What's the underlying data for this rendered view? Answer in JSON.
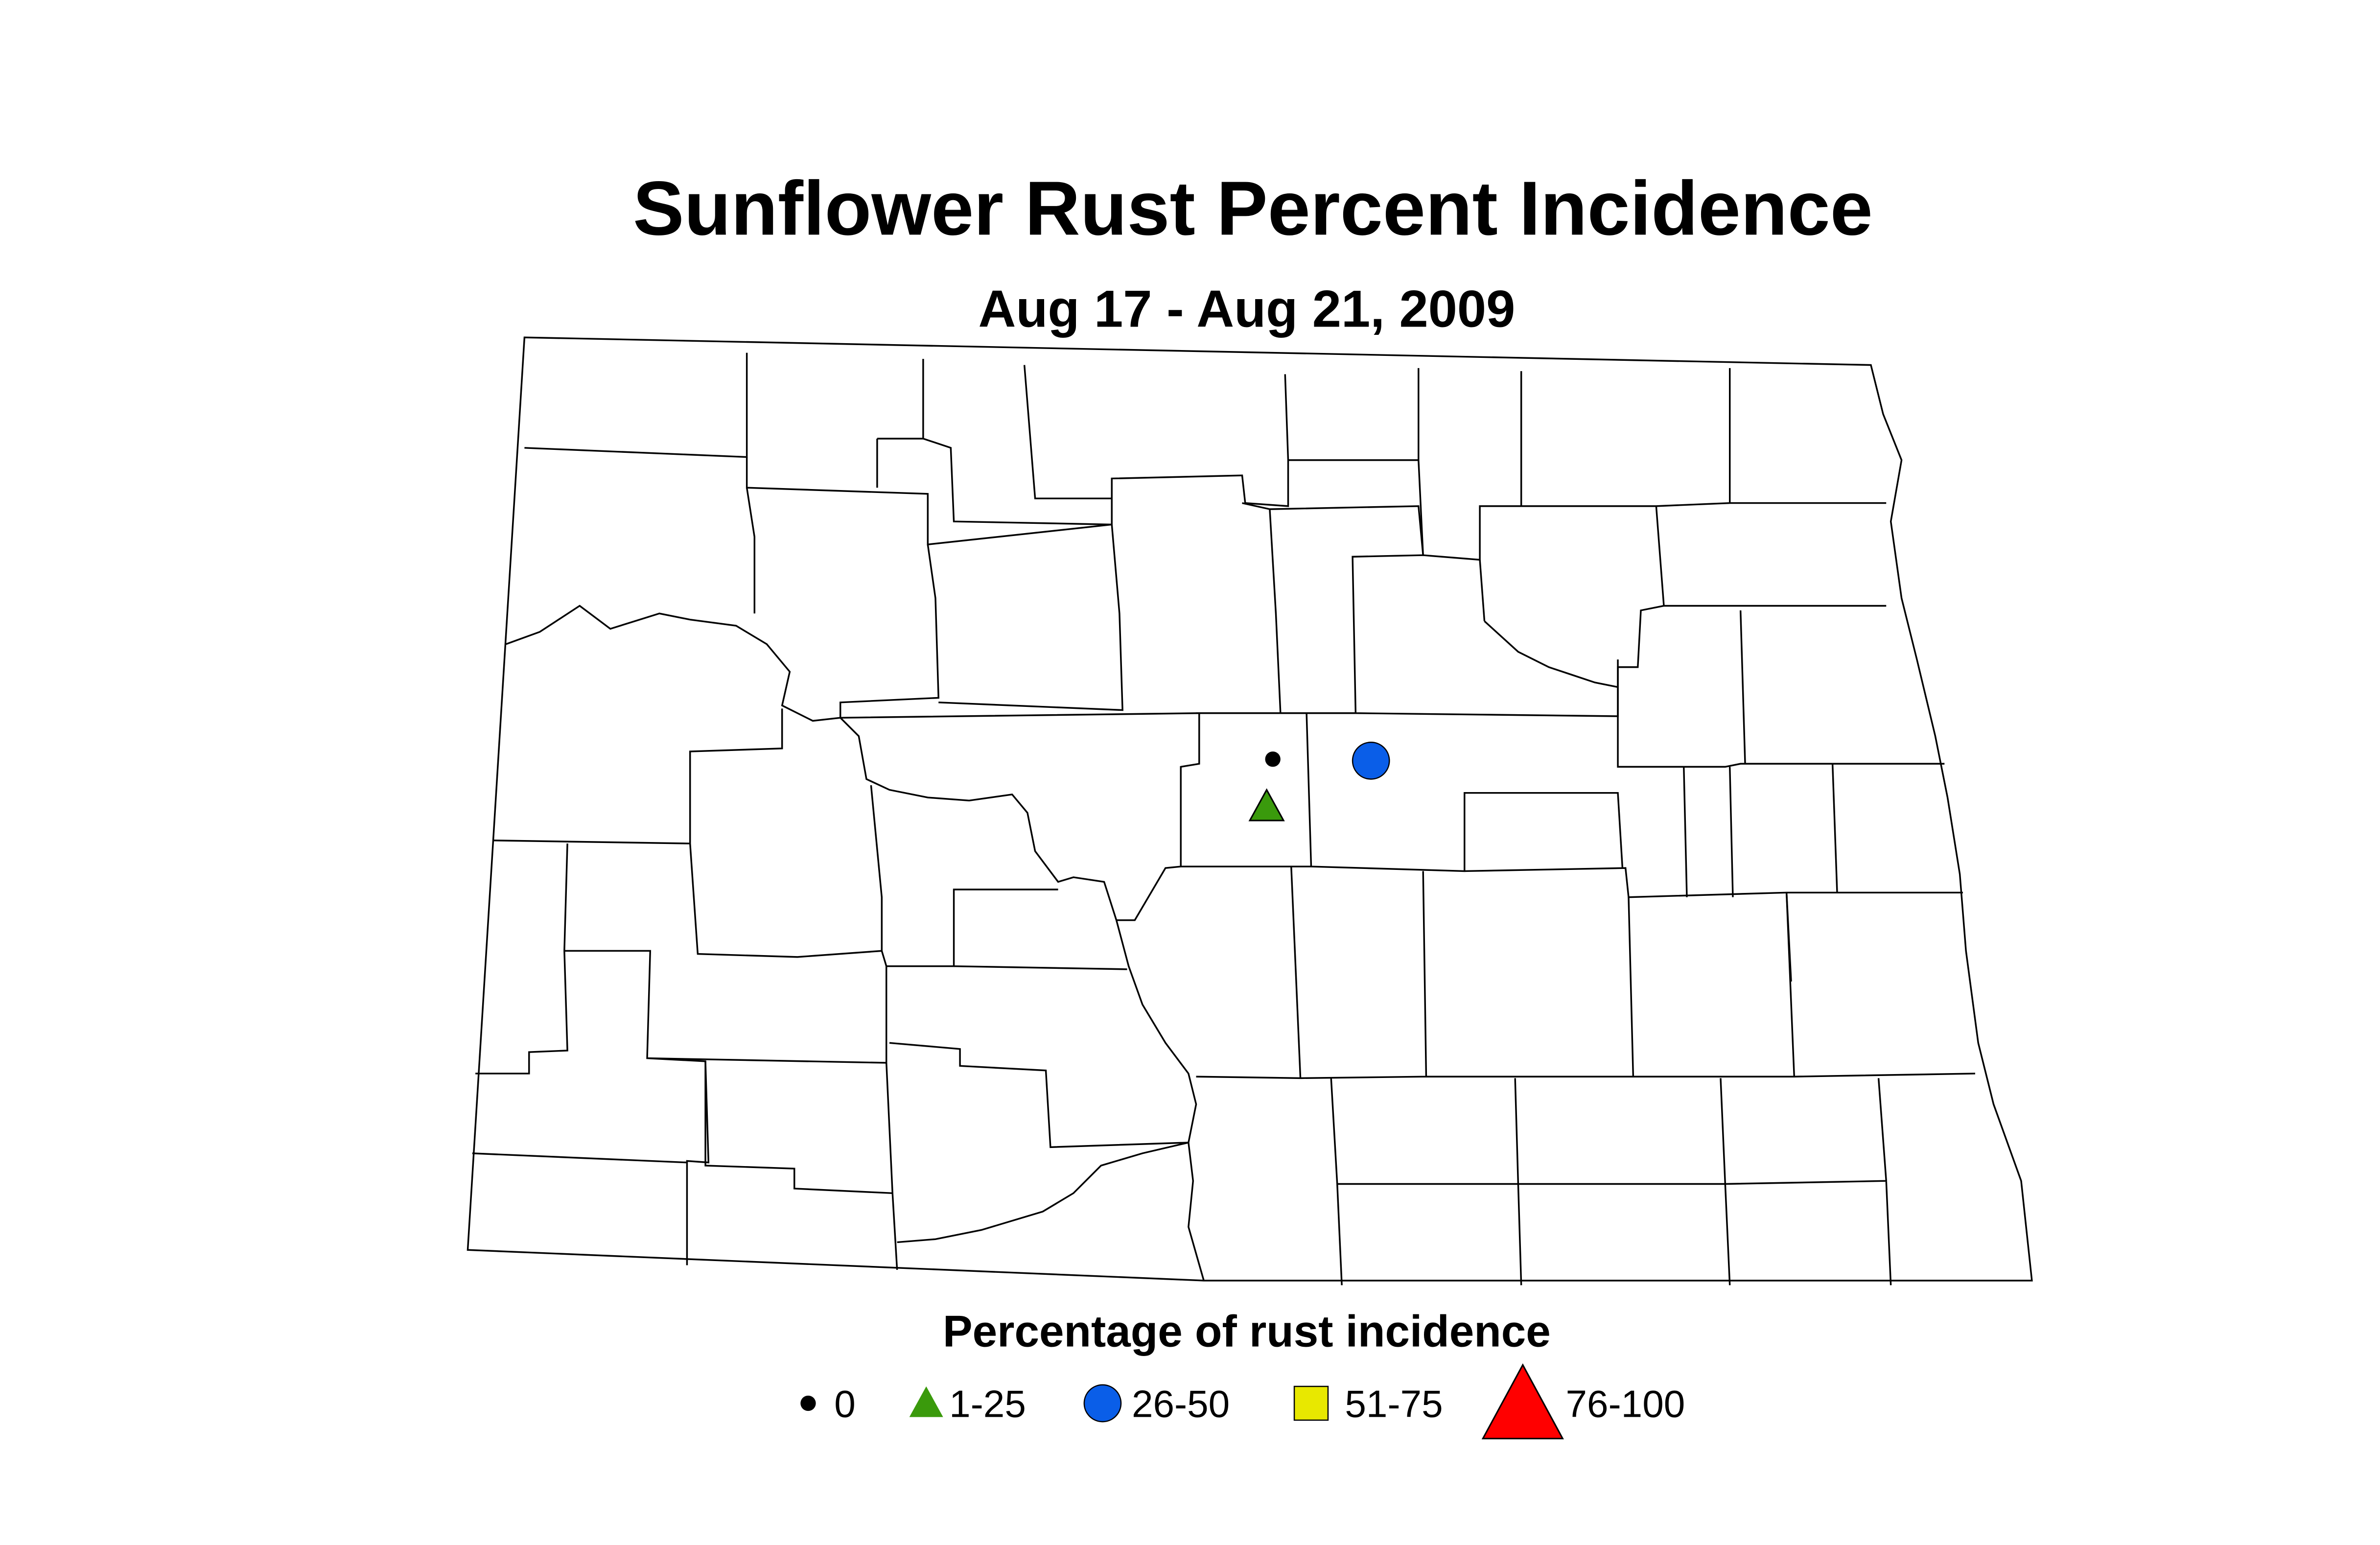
{
  "title": "Sunflower Rust Percent Incidence",
  "subtitle": "Aug 17 - Aug 21, 2009",
  "legend": {
    "title": "Percentage of rust incidence",
    "items": [
      {
        "label": "0",
        "color": "#000000",
        "shape": "dot"
      },
      {
        "label": "1-25",
        "color": "#3a9a0c",
        "shape": "triangle"
      },
      {
        "label": "26-50",
        "color": "#0a5ee8",
        "shape": "circle"
      },
      {
        "label": "51-75",
        "color": "#e8e800",
        "shape": "square"
      },
      {
        "label": "76-100",
        "color": "#ff0000",
        "shape": "big-triangle"
      }
    ]
  }
}
